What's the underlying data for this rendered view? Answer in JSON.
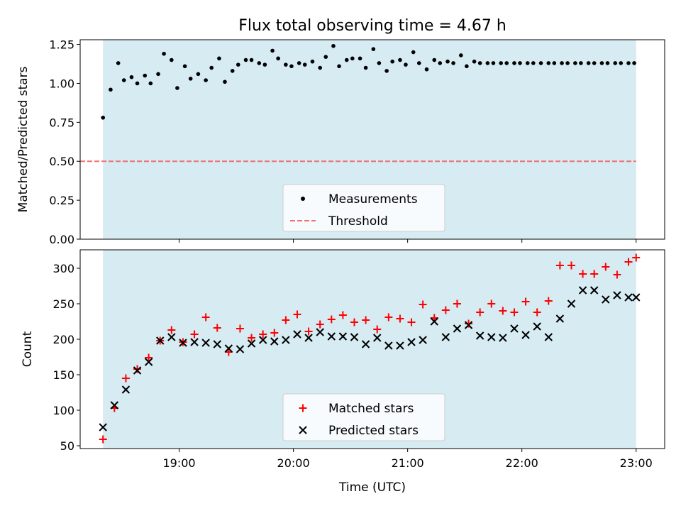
{
  "chart_data": [
    {
      "type": "scatter",
      "title": "Flux total observing time = 4.67 h",
      "xlabel": "",
      "ylabel": "Matched/Predicted stars",
      "xlim": [
        "18:08",
        "23:15"
      ],
      "ylim": [
        0,
        1.28
      ],
      "yticks": [
        "0.00",
        "0.25",
        "0.50",
        "0.75",
        "1.00",
        "1.25"
      ],
      "shaded_span": {
        "from": "18:20",
        "to": "23:00",
        "color": "#add8e6"
      },
      "threshold": {
        "name": "Threshold",
        "value": 0.5,
        "color": "#f07070"
      },
      "legend": [
        "Measurements",
        "Threshold"
      ],
      "legend_position": "lower center",
      "series": [
        {
          "name": "Measurements",
          "color": "#000000",
          "x": [
            "18:20",
            "18:24",
            "18:28",
            "18:31",
            "18:35",
            "18:38",
            "18:42",
            "18:45",
            "18:49",
            "18:52",
            "18:56",
            "18:59",
            "19:03",
            "19:06",
            "19:10",
            "19:14",
            "19:17",
            "19:21",
            "19:24",
            "19:28",
            "19:31",
            "19:35",
            "19:38",
            "19:42",
            "19:45",
            "19:49",
            "19:52",
            "19:56",
            "19:59",
            "20:03",
            "20:06",
            "20:10",
            "20:14",
            "20:17",
            "20:21",
            "20:24",
            "20:28",
            "20:31",
            "20:35",
            "20:38",
            "20:42",
            "20:45",
            "20:49",
            "20:52",
            "20:56",
            "20:59",
            "21:03",
            "21:06",
            "21:10",
            "21:14",
            "21:17",
            "21:21",
            "21:24",
            "21:28",
            "21:31",
            "21:35",
            "21:38",
            "21:42",
            "21:45",
            "21:49",
            "21:52",
            "21:56",
            "21:59",
            "22:03",
            "22:06",
            "22:10",
            "22:14",
            "22:17",
            "22:21",
            "22:24",
            "22:28",
            "22:31",
            "22:35",
            "22:38",
            "22:42",
            "22:45",
            "22:49",
            "22:52",
            "22:56",
            "22:59"
          ],
          "y": [
            0.78,
            0.96,
            1.13,
            1.02,
            1.04,
            1.0,
            1.05,
            1.0,
            1.06,
            1.19,
            1.15,
            0.97,
            1.11,
            1.03,
            1.06,
            1.02,
            1.1,
            1.16,
            1.01,
            1.08,
            1.12,
            1.15,
            1.15,
            1.13,
            1.12,
            1.21,
            1.16,
            1.12,
            1.11,
            1.13,
            1.12,
            1.14,
            1.1,
            1.17,
            1.24,
            1.11,
            1.15,
            1.16,
            1.16,
            1.1,
            1.22,
            1.13,
            1.08,
            1.14,
            1.15,
            1.12,
            1.2,
            1.13,
            1.09,
            1.15,
            1.13,
            1.14,
            1.13,
            1.18,
            1.11,
            1.14,
            1.13,
            1.13,
            1.13,
            1.13,
            1.13,
            1.13,
            1.13,
            1.13,
            1.13,
            1.13,
            1.13,
            1.13,
            1.13,
            1.13,
            1.13,
            1.13,
            1.13,
            1.13,
            1.13,
            1.13,
            1.13,
            1.13,
            1.13,
            1.13
          ]
        }
      ]
    },
    {
      "type": "scatter",
      "title": "",
      "xlabel": "Time (UTC)",
      "ylabel": "Count",
      "xlim": [
        "18:08",
        "23:15"
      ],
      "ylim": [
        46,
        326
      ],
      "yticks": [
        "50",
        "100",
        "150",
        "200",
        "250",
        "300"
      ],
      "xticks": [
        "19:00",
        "20:00",
        "21:00",
        "22:00",
        "23:00"
      ],
      "shaded_span": {
        "from": "18:20",
        "to": "23:00",
        "color": "#add8e6"
      },
      "legend": [
        "Matched stars",
        "Predicted stars"
      ],
      "legend_position": "lower center",
      "x": [
        "18:20",
        "18:26",
        "18:32",
        "18:38",
        "18:44",
        "18:50",
        "18:56",
        "19:02",
        "19:08",
        "19:14",
        "19:20",
        "19:26",
        "19:32",
        "19:38",
        "19:44",
        "19:50",
        "19:56",
        "20:02",
        "20:08",
        "20:14",
        "20:20",
        "20:26",
        "20:32",
        "20:38",
        "20:44",
        "20:50",
        "20:56",
        "21:02",
        "21:08",
        "21:14",
        "21:20",
        "21:26",
        "21:32",
        "21:38",
        "21:44",
        "21:50",
        "21:56",
        "22:02",
        "22:08",
        "22:14",
        "22:20",
        "22:26",
        "22:32",
        "22:38",
        "22:44",
        "22:50",
        "22:56",
        "23:00"
      ],
      "series": [
        {
          "name": "Matched stars",
          "marker": "plus",
          "color": "#ff0000",
          "y": [
            59,
            103,
            145,
            158,
            174,
            198,
            213,
            196,
            207,
            231,
            216,
            182,
            215,
            202,
            207,
            209,
            227,
            235,
            211,
            221,
            228,
            234,
            224,
            227,
            214,
            231,
            229,
            224,
            249,
            230,
            241,
            250,
            222,
            238,
            250,
            240,
            238,
            253,
            238,
            254,
            304,
            304,
            292,
            292,
            302,
            291,
            309,
            315
          ]
        },
        {
          "name": "Predicted stars",
          "marker": "x",
          "color": "#000000",
          "y": [
            76,
            107,
            129,
            156,
            168,
            198,
            203,
            195,
            196,
            195,
            193,
            187,
            186,
            194,
            199,
            197,
            199,
            207,
            202,
            210,
            204,
            204,
            203,
            193,
            202,
            191,
            191,
            196,
            199,
            225,
            203,
            215,
            220,
            205,
            203,
            202,
            215,
            206,
            218,
            203,
            229,
            250,
            269,
            269,
            256,
            262,
            259,
            259
          ]
        }
      ]
    }
  ]
}
